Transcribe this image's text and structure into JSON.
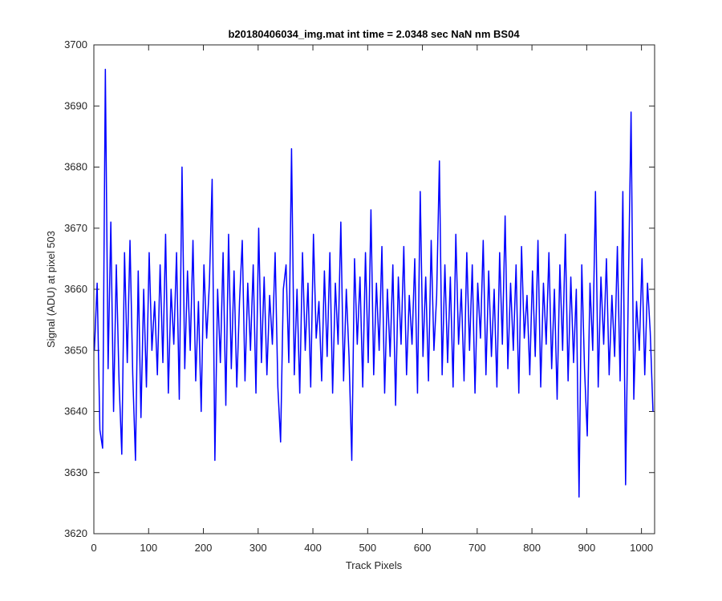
{
  "chart_data": {
    "type": "line",
    "title": "b20180406034_img.mat int time = 2.0348 sec  NaN nm BS04",
    "xlabel": "Track Pixels",
    "ylabel": "Signal (ADU) at pixel 503",
    "xlim": [
      0,
      1024
    ],
    "ylim": [
      3620,
      3700
    ],
    "xticks": [
      0,
      100,
      200,
      300,
      400,
      500,
      600,
      700,
      800,
      900,
      1000
    ],
    "yticks": [
      3620,
      3630,
      3640,
      3650,
      3660,
      3670,
      3680,
      3690,
      3700
    ],
    "grid": false,
    "x": [
      1,
      6,
      11,
      16,
      21,
      26,
      31,
      36,
      41,
      46,
      51,
      56,
      61,
      66,
      71,
      76,
      81,
      86,
      91,
      96,
      101,
      106,
      111,
      116,
      121,
      126,
      131,
      136,
      141,
      146,
      151,
      156,
      161,
      166,
      171,
      176,
      181,
      186,
      191,
      196,
      201,
      206,
      211,
      216,
      221,
      226,
      231,
      236,
      241,
      246,
      251,
      256,
      261,
      266,
      271,
      276,
      281,
      286,
      291,
      296,
      301,
      306,
      311,
      316,
      321,
      326,
      331,
      336,
      341,
      346,
      351,
      356,
      361,
      366,
      371,
      376,
      381,
      386,
      391,
      396,
      401,
      406,
      411,
      416,
      421,
      426,
      431,
      436,
      441,
      446,
      451,
      456,
      461,
      466,
      471,
      476,
      481,
      486,
      491,
      496,
      501,
      506,
      511,
      516,
      521,
      526,
      531,
      536,
      541,
      546,
      551,
      556,
      561,
      566,
      571,
      576,
      581,
      586,
      591,
      596,
      601,
      606,
      611,
      616,
      621,
      626,
      631,
      636,
      641,
      646,
      651,
      656,
      661,
      666,
      671,
      676,
      681,
      686,
      691,
      696,
      701,
      706,
      711,
      716,
      721,
      726,
      731,
      736,
      741,
      746,
      751,
      756,
      761,
      766,
      771,
      776,
      781,
      786,
      791,
      796,
      801,
      806,
      811,
      816,
      821,
      826,
      831,
      836,
      841,
      846,
      851,
      856,
      861,
      866,
      871,
      876,
      881,
      886,
      891,
      896,
      901,
      906,
      911,
      916,
      921,
      926,
      931,
      936,
      941,
      946,
      951,
      956,
      961,
      966,
      971,
      976,
      981,
      986,
      991,
      996,
      1001,
      1006,
      1011,
      1016,
      1021
    ],
    "series": [
      {
        "name": "signal",
        "color": "#0000ff",
        "values": [
          3650,
          3661,
          3637,
          3634,
          3696,
          3647,
          3671,
          3640,
          3664,
          3645,
          3633,
          3666,
          3648,
          3668,
          3646,
          3632,
          3663,
          3639,
          3660,
          3644,
          3666,
          3650,
          3658,
          3646,
          3664,
          3648,
          3669,
          3643,
          3660,
          3651,
          3666,
          3642,
          3680,
          3647,
          3663,
          3650,
          3668,
          3645,
          3658,
          3640,
          3664,
          3652,
          3661,
          3678,
          3632,
          3660,
          3648,
          3666,
          3641,
          3669,
          3647,
          3663,
          3644,
          3658,
          3668,
          3645,
          3661,
          3650,
          3664,
          3643,
          3670,
          3648,
          3662,
          3646,
          3659,
          3651,
          3666,
          3644,
          3635,
          3660,
          3664,
          3648,
          3683,
          3646,
          3660,
          3643,
          3666,
          3650,
          3661,
          3644,
          3669,
          3652,
          3658,
          3645,
          3663,
          3649,
          3666,
          3643,
          3661,
          3651,
          3671,
          3645,
          3660,
          3649,
          3632,
          3665,
          3651,
          3662,
          3644,
          3666,
          3648,
          3673,
          3646,
          3661,
          3650,
          3667,
          3643,
          3660,
          3649,
          3664,
          3641,
          3662,
          3651,
          3667,
          3646,
          3659,
          3651,
          3665,
          3643,
          3676,
          3649,
          3662,
          3645,
          3668,
          3650,
          3659,
          3681,
          3646,
          3664,
          3648,
          3662,
          3644,
          3669,
          3651,
          3660,
          3645,
          3666,
          3650,
          3664,
          3643,
          3661,
          3652,
          3668,
          3646,
          3663,
          3649,
          3660,
          3644,
          3666,
          3651,
          3672,
          3647,
          3661,
          3650,
          3664,
          3643,
          3667,
          3652,
          3659,
          3646,
          3663,
          3649,
          3668,
          3644,
          3661,
          3651,
          3666,
          3647,
          3660,
          3642,
          3664,
          3650,
          3669,
          3645,
          3662,
          3648,
          3660,
          3626,
          3664,
          3647,
          3636,
          3661,
          3650,
          3676,
          3644,
          3662,
          3651,
          3665,
          3646,
          3659,
          3649,
          3667,
          3645,
          3676,
          3628,
          3660,
          3689,
          3642,
          3658,
          3650,
          3665,
          3646,
          3661,
          3653,
          3640
        ]
      }
    ]
  }
}
